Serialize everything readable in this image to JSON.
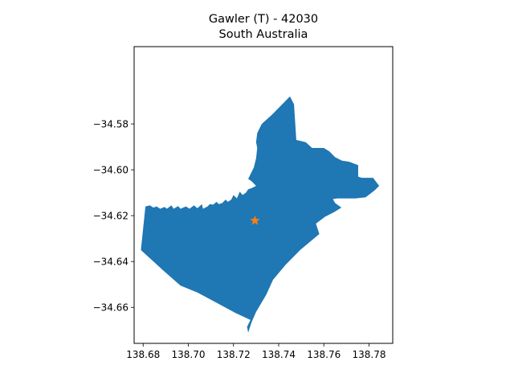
{
  "title": {
    "line1": "Gawler (T) - 42030",
    "line2": "South Australia"
  },
  "colors": {
    "region_fill": "#1f77b4",
    "centroid_marker": "#ff7f0e",
    "axes": "#000000",
    "background": "#ffffff"
  },
  "chart_data": {
    "type": "map",
    "x_ticks": [
      "138.68",
      "138.70",
      "138.72",
      "138.74",
      "138.76",
      "138.78"
    ],
    "y_ticks": [
      "−34.58",
      "−34.60",
      "−34.62",
      "−34.64",
      "−34.66"
    ],
    "xlim": [
      138.676,
      138.7905
    ],
    "ylim": [
      -34.6757,
      -34.5463
    ],
    "centroid": {
      "lon": 138.7295,
      "lat": -34.6222
    },
    "region_boundary": [
      [
        138.681,
        -34.616
      ],
      [
        138.683,
        -34.6155
      ],
      [
        138.6845,
        -34.6165
      ],
      [
        138.686,
        -34.616
      ],
      [
        138.6875,
        -34.617
      ],
      [
        138.6895,
        -34.6162
      ],
      [
        138.6905,
        -34.617
      ],
      [
        138.6925,
        -34.6155
      ],
      [
        138.6935,
        -34.617
      ],
      [
        138.6955,
        -34.6158
      ],
      [
        138.6965,
        -34.617
      ],
      [
        138.699,
        -34.616
      ],
      [
        138.7005,
        -34.617
      ],
      [
        138.7025,
        -34.6155
      ],
      [
        138.704,
        -34.6168
      ],
      [
        138.706,
        -34.615
      ],
      [
        138.7065,
        -34.617
      ],
      [
        138.7085,
        -34.616
      ],
      [
        138.7095,
        -34.615
      ],
      [
        138.711,
        -34.6152
      ],
      [
        138.7125,
        -34.614
      ],
      [
        138.7135,
        -34.615
      ],
      [
        138.715,
        -34.6145
      ],
      [
        138.7165,
        -34.613
      ],
      [
        138.7175,
        -34.614
      ],
      [
        138.719,
        -34.613
      ],
      [
        138.72,
        -34.611
      ],
      [
        138.7215,
        -34.6125
      ],
      [
        138.7228,
        -34.6095
      ],
      [
        138.724,
        -34.611
      ],
      [
        138.7255,
        -34.61
      ],
      [
        138.7265,
        -34.6085
      ],
      [
        138.728,
        -34.608
      ],
      [
        138.73,
        -34.607
      ],
      [
        138.728,
        -34.605
      ],
      [
        138.7265,
        -34.604
      ],
      [
        138.7275,
        -34.602
      ],
      [
        138.729,
        -34.599
      ],
      [
        138.73,
        -34.595
      ],
      [
        138.7305,
        -34.5905
      ],
      [
        138.73,
        -34.588
      ],
      [
        138.7305,
        -34.584
      ],
      [
        138.7325,
        -34.58
      ],
      [
        138.737,
        -34.576
      ],
      [
        138.7415,
        -34.5715
      ],
      [
        138.745,
        -34.568
      ],
      [
        138.7468,
        -34.5715
      ],
      [
        138.7478,
        -34.587
      ],
      [
        138.752,
        -34.588
      ],
      [
        138.7548,
        -34.5905
      ],
      [
        138.76,
        -34.5905
      ],
      [
        138.7625,
        -34.592
      ],
      [
        138.765,
        -34.5945
      ],
      [
        138.768,
        -34.596
      ],
      [
        138.7712,
        -34.5965
      ],
      [
        138.7752,
        -34.598
      ],
      [
        138.7752,
        -34.603
      ],
      [
        138.7768,
        -34.6035
      ],
      [
        138.7818,
        -34.6035
      ],
      [
        138.7845,
        -34.607
      ],
      [
        138.7825,
        -34.609
      ],
      [
        138.7785,
        -34.612
      ],
      [
        138.774,
        -34.6125
      ],
      [
        138.766,
        -34.6125
      ],
      [
        138.764,
        -34.6128
      ],
      [
        138.765,
        -34.6145
      ],
      [
        138.7678,
        -34.6165
      ],
      [
        138.7645,
        -34.6185
      ],
      [
        138.7605,
        -34.6205
      ],
      [
        138.7565,
        -34.6235
      ],
      [
        138.758,
        -34.628
      ],
      [
        138.7495,
        -34.635
      ],
      [
        138.743,
        -34.6415
      ],
      [
        138.7375,
        -34.648
      ],
      [
        138.7345,
        -34.6545
      ],
      [
        138.73,
        -34.662
      ],
      [
        138.728,
        -34.6665
      ],
      [
        138.7265,
        -34.671
      ],
      [
        138.726,
        -34.6685
      ],
      [
        138.7275,
        -34.6655
      ],
      [
        138.721,
        -34.6625
      ],
      [
        138.7125,
        -34.658
      ],
      [
        138.704,
        -34.6535
      ],
      [
        138.6965,
        -34.6505
      ],
      [
        138.689,
        -34.644
      ],
      [
        138.684,
        -34.6395
      ],
      [
        138.679,
        -34.635
      ]
    ]
  }
}
